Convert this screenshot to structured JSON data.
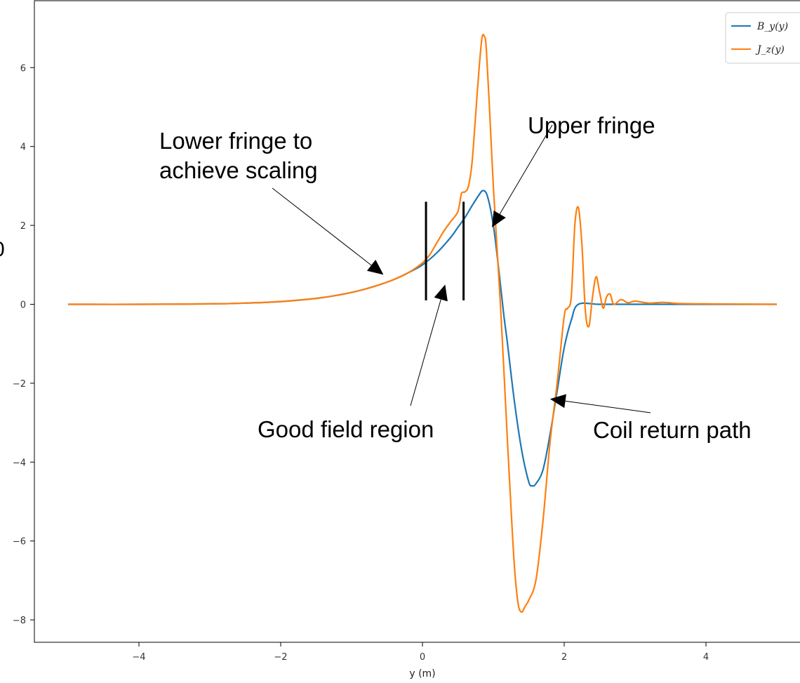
{
  "chart_data": {
    "type": "line",
    "title": "",
    "xlabel": "y (m)",
    "ylabel": "",
    "xlim": [
      -5.3,
      5.3
    ],
    "ylim": [
      -8.6,
      7.6
    ],
    "xticks": [
      -4,
      -2,
      0,
      2,
      4
    ],
    "xtick_labels": [
      "−4",
      "−2",
      "0",
      "2",
      "4"
    ],
    "yticks": [
      -8,
      -6,
      -4,
      -2,
      0,
      2,
      4,
      6
    ],
    "ytick_labels": [
      "−8",
      "−6",
      "−4",
      "−2",
      "0",
      "2",
      "4",
      "6"
    ],
    "grid": false,
    "legend_position": "top-right",
    "cropped_left_text": "0",
    "series": [
      {
        "name": "B_y(y)",
        "color": "#1f77b4",
        "points": [
          [
            -5,
            0
          ],
          [
            -4,
            0
          ],
          [
            -3,
            0.01
          ],
          [
            -2.5,
            0.03
          ],
          [
            -2,
            0.07
          ],
          [
            -1.5,
            0.15
          ],
          [
            -1.2,
            0.23
          ],
          [
            -1,
            0.3
          ],
          [
            -0.8,
            0.39
          ],
          [
            -0.6,
            0.5
          ],
          [
            -0.4,
            0.63
          ],
          [
            -0.2,
            0.8
          ],
          [
            0,
            1.0
          ],
          [
            0.2,
            1.3
          ],
          [
            0.4,
            1.7
          ],
          [
            0.5,
            1.95
          ],
          [
            0.6,
            2.2
          ],
          [
            0.7,
            2.5
          ],
          [
            0.8,
            2.78
          ],
          [
            0.85,
            2.88
          ],
          [
            0.9,
            2.82
          ],
          [
            0.95,
            2.5
          ],
          [
            1.0,
            2.0
          ],
          [
            1.05,
            1.3
          ],
          [
            1.1,
            0.5
          ],
          [
            1.15,
            -0.3
          ],
          [
            1.2,
            -1.0
          ],
          [
            1.3,
            -2.5
          ],
          [
            1.4,
            -3.7
          ],
          [
            1.5,
            -4.5
          ],
          [
            1.55,
            -4.6
          ],
          [
            1.6,
            -4.55
          ],
          [
            1.7,
            -4.2
          ],
          [
            1.8,
            -3.3
          ],
          [
            1.9,
            -2.2
          ],
          [
            2.0,
            -1.1
          ],
          [
            2.1,
            -0.4
          ],
          [
            2.2,
            0
          ],
          [
            2.5,
            0
          ],
          [
            3,
            0
          ],
          [
            4,
            0
          ],
          [
            5,
            0
          ]
        ]
      },
      {
        "name": "J_z(y)",
        "color": "#ff7f0e",
        "points": [
          [
            -5,
            0
          ],
          [
            -4,
            0
          ],
          [
            -3,
            0.01
          ],
          [
            -2.5,
            0.03
          ],
          [
            -2,
            0.07
          ],
          [
            -1.5,
            0.15
          ],
          [
            -1.2,
            0.23
          ],
          [
            -1,
            0.3
          ],
          [
            -0.8,
            0.39
          ],
          [
            -0.6,
            0.5
          ],
          [
            -0.4,
            0.63
          ],
          [
            -0.2,
            0.8
          ],
          [
            0,
            1.05
          ],
          [
            0.1,
            1.25
          ],
          [
            0.2,
            1.55
          ],
          [
            0.3,
            1.85
          ],
          [
            0.4,
            2.1
          ],
          [
            0.5,
            2.35
          ],
          [
            0.55,
            2.8
          ],
          [
            0.6,
            2.85
          ],
          [
            0.65,
            3.0
          ],
          [
            0.7,
            3.6
          ],
          [
            0.75,
            4.8
          ],
          [
            0.8,
            6.0
          ],
          [
            0.84,
            6.75
          ],
          [
            0.87,
            6.8
          ],
          [
            0.9,
            6.5
          ],
          [
            0.95,
            4.8
          ],
          [
            1.0,
            3.0
          ],
          [
            1.05,
            1.5
          ],
          [
            1.1,
            0
          ],
          [
            1.15,
            -1.7
          ],
          [
            1.2,
            -3.5
          ],
          [
            1.25,
            -5.2
          ],
          [
            1.3,
            -6.7
          ],
          [
            1.35,
            -7.6
          ],
          [
            1.4,
            -7.8
          ],
          [
            1.45,
            -7.65
          ],
          [
            1.5,
            -7.5
          ],
          [
            1.6,
            -7.0
          ],
          [
            1.7,
            -5.5
          ],
          [
            1.8,
            -3.5
          ],
          [
            1.9,
            -2.0
          ],
          [
            2.0,
            -0.3
          ],
          [
            2.05,
            -0.1
          ],
          [
            2.1,
            0.2
          ],
          [
            2.15,
            2.0
          ],
          [
            2.2,
            2.45
          ],
          [
            2.25,
            1.5
          ],
          [
            2.3,
            -0.2
          ],
          [
            2.35,
            -0.55
          ],
          [
            2.4,
            0.2
          ],
          [
            2.45,
            0.7
          ],
          [
            2.5,
            0.3
          ],
          [
            2.55,
            -0.1
          ],
          [
            2.6,
            0.2
          ],
          [
            2.65,
            0.25
          ],
          [
            2.7,
            0
          ],
          [
            2.8,
            0.12
          ],
          [
            2.9,
            0.04
          ],
          [
            3.0,
            0.08
          ],
          [
            3.2,
            0.03
          ],
          [
            3.4,
            0.05
          ],
          [
            3.6,
            0.02
          ],
          [
            4,
            0.01
          ],
          [
            5,
            0
          ]
        ]
      }
    ],
    "annotations": [
      {
        "text": "Lower fringe to",
        "text2": "achieve scaling",
        "target": [
          -0.55,
          0.75
        ]
      },
      {
        "text": "Upper fringe",
        "target": [
          0.98,
          1.95
        ]
      },
      {
        "text": "Good field region",
        "target": [
          0.32,
          0.5
        ]
      },
      {
        "text": "Coil return path",
        "target": [
          1.8,
          -2.4
        ]
      }
    ],
    "region_markers_x": [
      0.05,
      0.58
    ],
    "region_marker_yrange": [
      0.1,
      2.6
    ]
  }
}
